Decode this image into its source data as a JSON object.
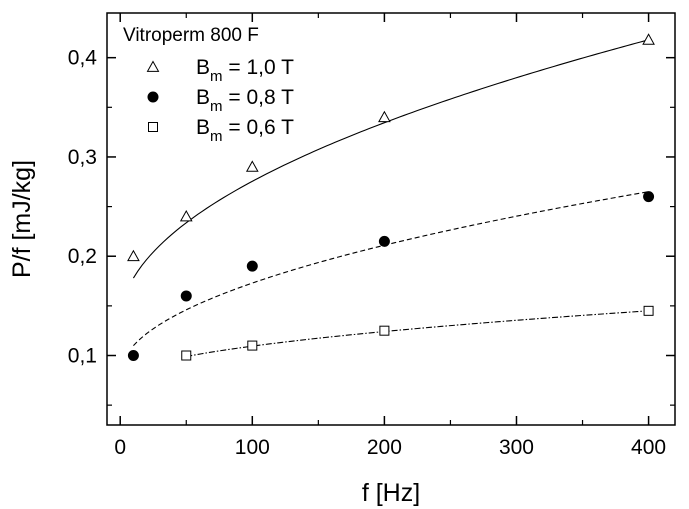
{
  "chart_data": {
    "type": "scatter",
    "title": "",
    "xlabel": "f [Hz]",
    "ylabel": "P/f [mJ/kg]",
    "xlim": [
      -10,
      420
    ],
    "ylim": [
      0.03,
      0.445
    ],
    "xticks": [
      0,
      100,
      200,
      300,
      400
    ],
    "xtick_labels": [
      "0",
      "100",
      "200",
      "300",
      "400"
    ],
    "yticks": [
      0.1,
      0.2,
      0.3,
      0.4
    ],
    "ytick_labels": [
      "0,1",
      "0,2",
      "0,3",
      "0,4"
    ],
    "grid": false,
    "legend": {
      "title": "Vitroperm 800 F",
      "position": "top-left"
    },
    "series": [
      {
        "label_main": "B",
        "label_sub": "m",
        "label_rest": " = 1,0 T",
        "marker": "triangle-open",
        "line": "solid",
        "x": [
          10,
          50,
          100,
          200,
          400
        ],
        "y": [
          0.2,
          0.24,
          0.29,
          0.34,
          0.418
        ],
        "fit_x": [
          10,
          400
        ],
        "fit_y": [
          0.178,
          0.418
        ]
      },
      {
        "label_main": "B",
        "label_sub": "m",
        "label_rest": " = 0,8 T",
        "marker": "circle-filled",
        "line": "dashed",
        "x": [
          10,
          50,
          100,
          200,
          400
        ],
        "y": [
          0.1,
          0.16,
          0.19,
          0.215,
          0.26
        ],
        "fit_x": [
          10,
          400
        ],
        "fit_y": [
          0.11,
          0.265
        ]
      },
      {
        "label_main": "B",
        "label_sub": "m",
        "label_rest": " = 0,6 T",
        "marker": "square-open",
        "line": "dashdot",
        "x": [
          50,
          100,
          200,
          400
        ],
        "y": [
          0.1,
          0.11,
          0.125,
          0.145
        ],
        "fit_x": [
          50,
          400
        ],
        "fit_y": [
          0.099,
          0.145
        ]
      }
    ]
  }
}
